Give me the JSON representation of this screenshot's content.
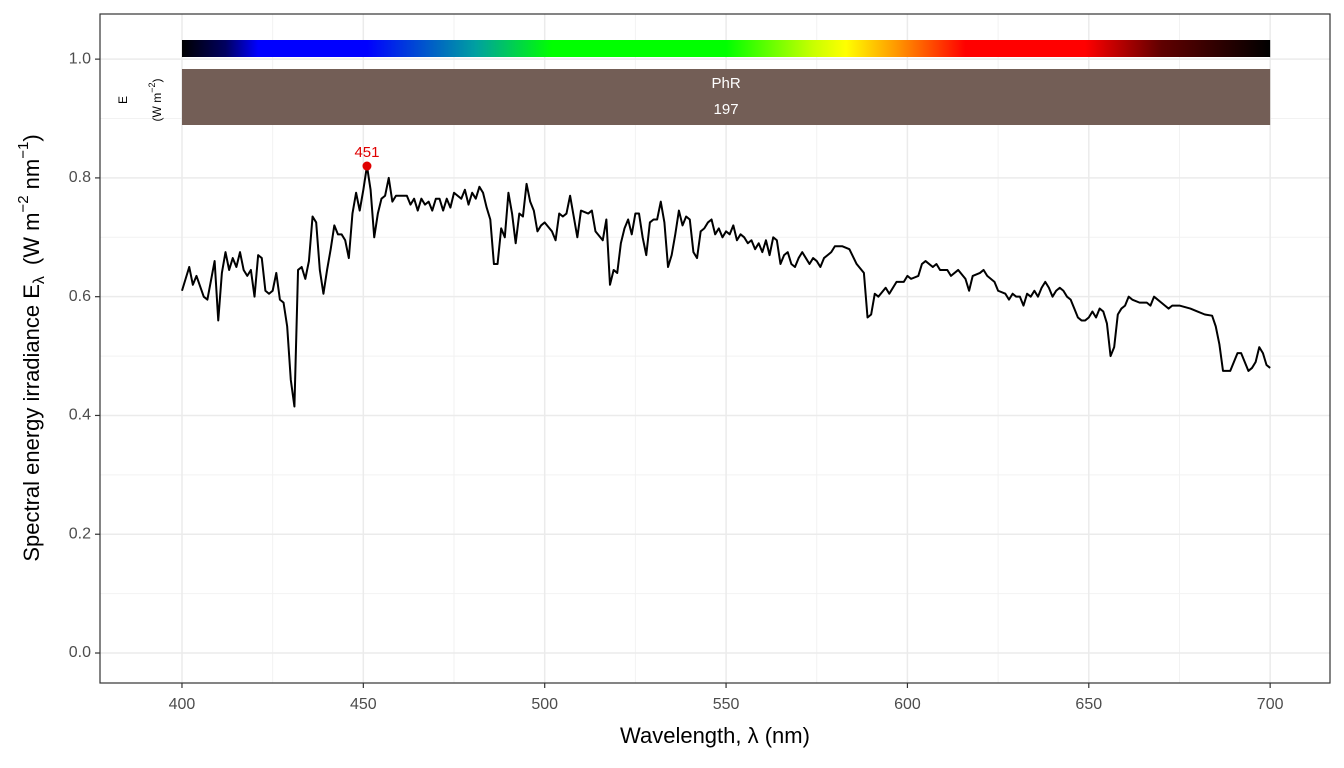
{
  "chart_data": {
    "type": "line",
    "x_label": "Wavelength, λ (nm)",
    "y_label": {
      "main": "Spectral  energy  irradiance  E",
      "sub": "λ",
      "unit": [
        "(W m",
        "−2",
        " nm",
        "−1",
        ")"
      ]
    },
    "band_quantity": "E",
    "band_unit": [
      "(W m",
      "−2",
      ")"
    ],
    "band_label": "PhR",
    "band_value": 197,
    "band_range": [
      400,
      700
    ],
    "band_color": "#735e56",
    "color": "#000000",
    "peak_color": "#e00000",
    "peaks": [
      {
        "x": 451,
        "y": 0.82
      }
    ],
    "xlim": [
      377.4,
      716.5
    ],
    "ylim": [
      -0.0505,
      1.076
    ],
    "xticks": [
      400,
      450,
      500,
      550,
      600,
      650,
      700
    ],
    "x_minor_ticks": [
      425,
      475,
      525,
      575,
      625,
      675
    ],
    "yticks": [
      {
        "value": 0,
        "label": "0.0"
      },
      0.2,
      0.4,
      0.6,
      0.8,
      {
        "value": 1,
        "label": "1.0"
      }
    ],
    "y_minor_ticks": [
      0.1,
      0.3,
      0.5,
      0.7,
      0.9
    ],
    "grid": true,
    "x": [
      400,
      402,
      403,
      404,
      406,
      407,
      409,
      410,
      411,
      412,
      413,
      414,
      415,
      416,
      417,
      418,
      419,
      420,
      421,
      422,
      423,
      424,
      425,
      426,
      427,
      428,
      429,
      430,
      431,
      432,
      433,
      434,
      435,
      436,
      437,
      438,
      439,
      440,
      441,
      442,
      443,
      444,
      445,
      446,
      447,
      448,
      449,
      450,
      451,
      452,
      453,
      454,
      455,
      456,
      457,
      458,
      459,
      460,
      462,
      463,
      464,
      465,
      466,
      467,
      468,
      469,
      470,
      471,
      472,
      473,
      474,
      475,
      476,
      477,
      478,
      479,
      480,
      481,
      482,
      483,
      484,
      485,
      486,
      487,
      488,
      489,
      490,
      491,
      492,
      493,
      494,
      495,
      496,
      497,
      498,
      499,
      500,
      502,
      503,
      504,
      505,
      506,
      507,
      508,
      509,
      510,
      512,
      513,
      514,
      516,
      517,
      518,
      519,
      520,
      521,
      522,
      523,
      524,
      525,
      526,
      527,
      528,
      529,
      530,
      531,
      532,
      533,
      534,
      535,
      536,
      537,
      538,
      539,
      540,
      541,
      542,
      543,
      544,
      545,
      546,
      547,
      548,
      549,
      550,
      551,
      552,
      553,
      554,
      555,
      556,
      557,
      558,
      559,
      560,
      561,
      562,
      563,
      564,
      565,
      566,
      567,
      568,
      569,
      570,
      571,
      572,
      573,
      574,
      575,
      576,
      577,
      578,
      579,
      580,
      581,
      582,
      584,
      586,
      588,
      589,
      590,
      591,
      592,
      594,
      595,
      597,
      599,
      600,
      601,
      603,
      604,
      605,
      607,
      608,
      609,
      611,
      612,
      614,
      616,
      617,
      618,
      620,
      621,
      622,
      624,
      625,
      627,
      628,
      629,
      630,
      631,
      632,
      633,
      634,
      635,
      636,
      637,
      638,
      639,
      640,
      641,
      642,
      643,
      644,
      645,
      646,
      647,
      648,
      649,
      650,
      651,
      652,
      653,
      654,
      655,
      656,
      657,
      658,
      659,
      660,
      661,
      662,
      664,
      666,
      667,
      668,
      670,
      671,
      672,
      673,
      675,
      678,
      680,
      682,
      684,
      685,
      686,
      687,
      688,
      689,
      690,
      691,
      692,
      693,
      694,
      695,
      696,
      697,
      698,
      699,
      700
    ],
    "values": [
      0.61,
      0.65,
      0.62,
      0.635,
      0.6,
      0.595,
      0.66,
      0.56,
      0.64,
      0.675,
      0.645,
      0.665,
      0.65,
      0.675,
      0.645,
      0.635,
      0.645,
      0.6,
      0.67,
      0.665,
      0.61,
      0.605,
      0.61,
      0.64,
      0.595,
      0.59,
      0.55,
      0.46,
      0.415,
      0.645,
      0.65,
      0.63,
      0.66,
      0.735,
      0.725,
      0.645,
      0.605,
      0.645,
      0.68,
      0.72,
      0.705,
      0.705,
      0.695,
      0.665,
      0.74,
      0.775,
      0.745,
      0.78,
      0.82,
      0.78,
      0.7,
      0.74,
      0.765,
      0.77,
      0.8,
      0.76,
      0.77,
      0.77,
      0.77,
      0.755,
      0.765,
      0.745,
      0.765,
      0.755,
      0.76,
      0.745,
      0.765,
      0.765,
      0.745,
      0.765,
      0.75,
      0.775,
      0.77,
      0.765,
      0.78,
      0.755,
      0.775,
      0.765,
      0.785,
      0.775,
      0.75,
      0.73,
      0.655,
      0.655,
      0.715,
      0.7,
      0.775,
      0.74,
      0.69,
      0.74,
      0.735,
      0.79,
      0.76,
      0.745,
      0.71,
      0.72,
      0.725,
      0.71,
      0.695,
      0.74,
      0.735,
      0.74,
      0.77,
      0.735,
      0.7,
      0.745,
      0.74,
      0.745,
      0.71,
      0.695,
      0.73,
      0.62,
      0.645,
      0.64,
      0.69,
      0.715,
      0.73,
      0.705,
      0.74,
      0.74,
      0.7,
      0.67,
      0.725,
      0.73,
      0.73,
      0.76,
      0.725,
      0.65,
      0.67,
      0.705,
      0.745,
      0.72,
      0.735,
      0.73,
      0.675,
      0.665,
      0.71,
      0.715,
      0.725,
      0.73,
      0.705,
      0.715,
      0.7,
      0.71,
      0.705,
      0.72,
      0.695,
      0.705,
      0.7,
      0.69,
      0.695,
      0.68,
      0.69,
      0.675,
      0.695,
      0.67,
      0.7,
      0.695,
      0.655,
      0.67,
      0.675,
      0.655,
      0.65,
      0.665,
      0.675,
      0.665,
      0.655,
      0.665,
      0.66,
      0.65,
      0.665,
      0.67,
      0.675,
      0.685,
      0.685,
      0.685,
      0.68,
      0.655,
      0.64,
      0.565,
      0.57,
      0.605,
      0.6,
      0.615,
      0.605,
      0.625,
      0.625,
      0.635,
      0.63,
      0.635,
      0.655,
      0.66,
      0.65,
      0.655,
      0.645,
      0.645,
      0.635,
      0.645,
      0.63,
      0.61,
      0.635,
      0.64,
      0.645,
      0.635,
      0.625,
      0.61,
      0.605,
      0.595,
      0.605,
      0.6,
      0.6,
      0.585,
      0.605,
      0.6,
      0.61,
      0.6,
      0.615,
      0.625,
      0.615,
      0.6,
      0.61,
      0.615,
      0.61,
      0.6,
      0.595,
      0.58,
      0.565,
      0.56,
      0.56,
      0.565,
      0.575,
      0.565,
      0.58,
      0.575,
      0.555,
      0.5,
      0.515,
      0.57,
      0.58,
      0.585,
      0.6,
      0.595,
      0.59,
      0.59,
      0.585,
      0.6,
      0.59,
      0.585,
      0.58,
      0.585,
      0.585,
      0.58,
      0.575,
      0.57,
      0.568,
      0.55,
      0.52,
      0.475,
      0.475,
      0.475,
      0.49,
      0.505,
      0.505,
      0.49,
      0.475,
      0.48,
      0.49,
      0.515,
      0.505,
      0.485,
      0.48
    ]
  }
}
